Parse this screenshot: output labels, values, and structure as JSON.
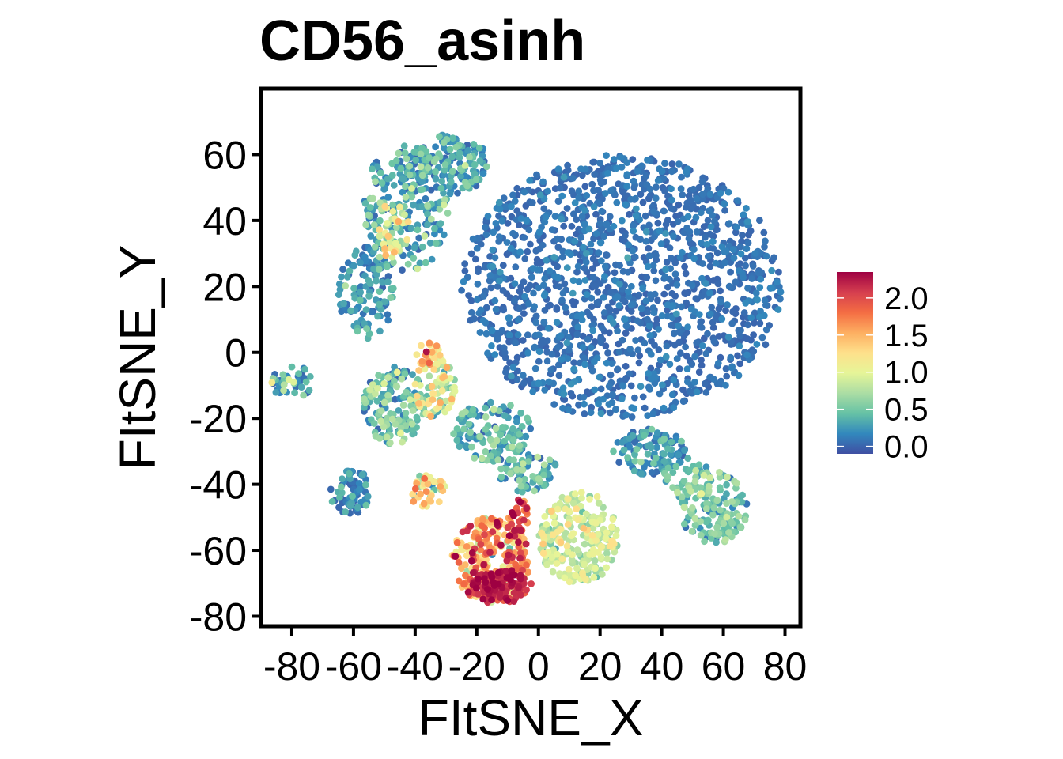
{
  "chart_data": {
    "type": "scatter",
    "title": "CD56_asinh",
    "xlabel": "FItSNE_X",
    "ylabel": "FItSNE_Y",
    "xlim": [
      -90,
      85
    ],
    "ylim": [
      -83,
      80
    ],
    "x_ticks": [
      -80,
      -60,
      -40,
      -20,
      0,
      20,
      40,
      60,
      80
    ],
    "x_tick_labels": [
      "-80",
      "-60",
      "-40",
      "-20",
      "0",
      "20",
      "40",
      "60",
      "80"
    ],
    "y_ticks": [
      -80,
      -60,
      -40,
      -20,
      0,
      20,
      40,
      60
    ],
    "y_tick_labels": [
      "-80",
      "-60",
      "-40",
      "-20",
      "0",
      "20",
      "40",
      "60"
    ],
    "grid": false,
    "legend": {
      "placement": "right",
      "type": "colorbar",
      "range": [
        -0.1,
        2.35
      ],
      "ticks": [
        0.0,
        0.5,
        1.0,
        1.5,
        2.0
      ],
      "tick_labels": [
        "0.0",
        "0.5",
        "1.0",
        "1.5",
        "2.0"
      ],
      "colormap": "Spectral (reversed)",
      "colors": [
        "#3f4fa3",
        "#3288bd",
        "#66c2a5",
        "#abdda4",
        "#e6f598",
        "#fee08b",
        "#fdae61",
        "#f46d43",
        "#d53e4f",
        "#9e0142"
      ]
    },
    "clusters": [
      {
        "cx": 27,
        "cy": 20,
        "rx": 52,
        "ry": 40,
        "count": 1500,
        "value": 0.05,
        "spread": 0.08
      },
      {
        "cx": -43,
        "cy": 44,
        "rx": 14,
        "ry": 20,
        "count": 220,
        "value": 0.3,
        "spread": 0.25
      },
      {
        "cx": -29,
        "cy": 57,
        "rx": 13,
        "ry": 9,
        "count": 140,
        "value": 0.3,
        "spread": 0.2
      },
      {
        "cx": -56,
        "cy": 18,
        "rx": 9,
        "ry": 14,
        "count": 120,
        "value": 0.2,
        "spread": 0.2
      },
      {
        "cx": -47,
        "cy": 38,
        "rx": 5,
        "ry": 10,
        "count": 50,
        "value": 0.95,
        "spread": 0.3
      },
      {
        "cx": -47,
        "cy": -16,
        "rx": 10,
        "ry": 12,
        "count": 160,
        "value": 0.45,
        "spread": 0.25
      },
      {
        "cx": -34,
        "cy": -10,
        "rx": 7,
        "ry": 10,
        "count": 90,
        "value": 0.9,
        "spread": 0.4
      },
      {
        "cx": -36,
        "cy": 0,
        "rx": 4,
        "ry": 4,
        "count": 22,
        "value": 1.4,
        "spread": 0.3
      },
      {
        "cx": -80,
        "cy": -9,
        "rx": 7,
        "ry": 5,
        "count": 45,
        "value": 0.3,
        "spread": 0.3
      },
      {
        "cx": -61,
        "cy": -42,
        "rx": 7,
        "ry": 7,
        "count": 70,
        "value": 0.1,
        "spread": 0.2
      },
      {
        "cx": -15,
        "cy": -24,
        "rx": 13,
        "ry": 9,
        "count": 130,
        "value": 0.35,
        "spread": 0.2
      },
      {
        "cx": -3,
        "cy": -37,
        "rx": 10,
        "ry": 6,
        "count": 70,
        "value": 0.4,
        "spread": 0.2
      },
      {
        "cx": 13,
        "cy": -56,
        "rx": 13,
        "ry": 14,
        "count": 240,
        "value": 0.85,
        "spread": 0.2
      },
      {
        "cx": -15,
        "cy": -63,
        "rx": 13,
        "ry": 13,
        "count": 260,
        "value": 1.55,
        "spread": 0.4
      },
      {
        "cx": -12,
        "cy": -71,
        "rx": 10,
        "ry": 5,
        "count": 110,
        "value": 2.15,
        "spread": 0.15
      },
      {
        "cx": -7,
        "cy": -50,
        "rx": 4,
        "ry": 6,
        "count": 35,
        "value": 1.9,
        "spread": 0.3
      },
      {
        "cx": -36,
        "cy": -42,
        "rx": 6,
        "ry": 5,
        "count": 40,
        "value": 1.1,
        "spread": 0.4
      },
      {
        "cx": 57,
        "cy": -47,
        "rx": 11,
        "ry": 11,
        "count": 150,
        "value": 0.5,
        "spread": 0.2
      },
      {
        "cx": 36,
        "cy": -30,
        "rx": 12,
        "ry": 7,
        "count": 110,
        "value": 0.2,
        "spread": 0.2
      },
      {
        "cx": 48,
        "cy": -38,
        "rx": 8,
        "ry": 6,
        "count": 40,
        "value": 0.45,
        "spread": 0.2
      }
    ]
  }
}
